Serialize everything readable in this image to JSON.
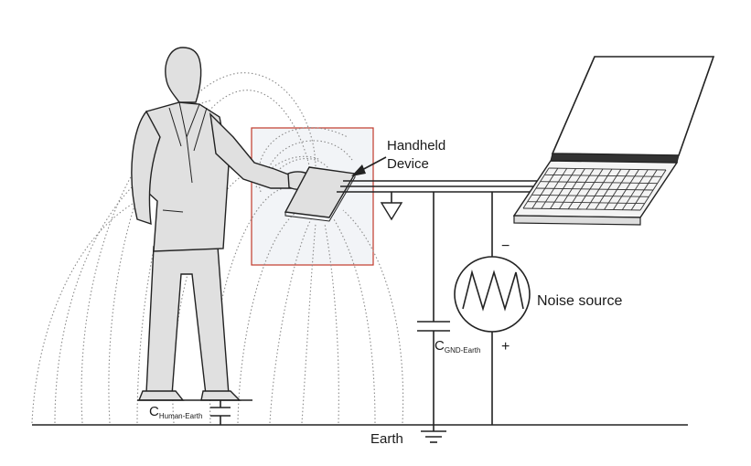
{
  "labels": {
    "handheld_line1": "Handheld",
    "handheld_line2": "Device",
    "noise_source": "Noise source",
    "c_gnd_main": "C",
    "c_gnd_sub": "GND-Earth",
    "c_human_main": "C",
    "c_human_sub": "Human-Earth",
    "earth": "Earth",
    "minus": "−",
    "plus": "+"
  },
  "colors": {
    "highlight_border": "#c0392b",
    "highlight_fill": "#f2f4f7",
    "ink": "#222222",
    "field_lines": "#8a8a8a",
    "figure_fill": "#e0e0e0"
  }
}
